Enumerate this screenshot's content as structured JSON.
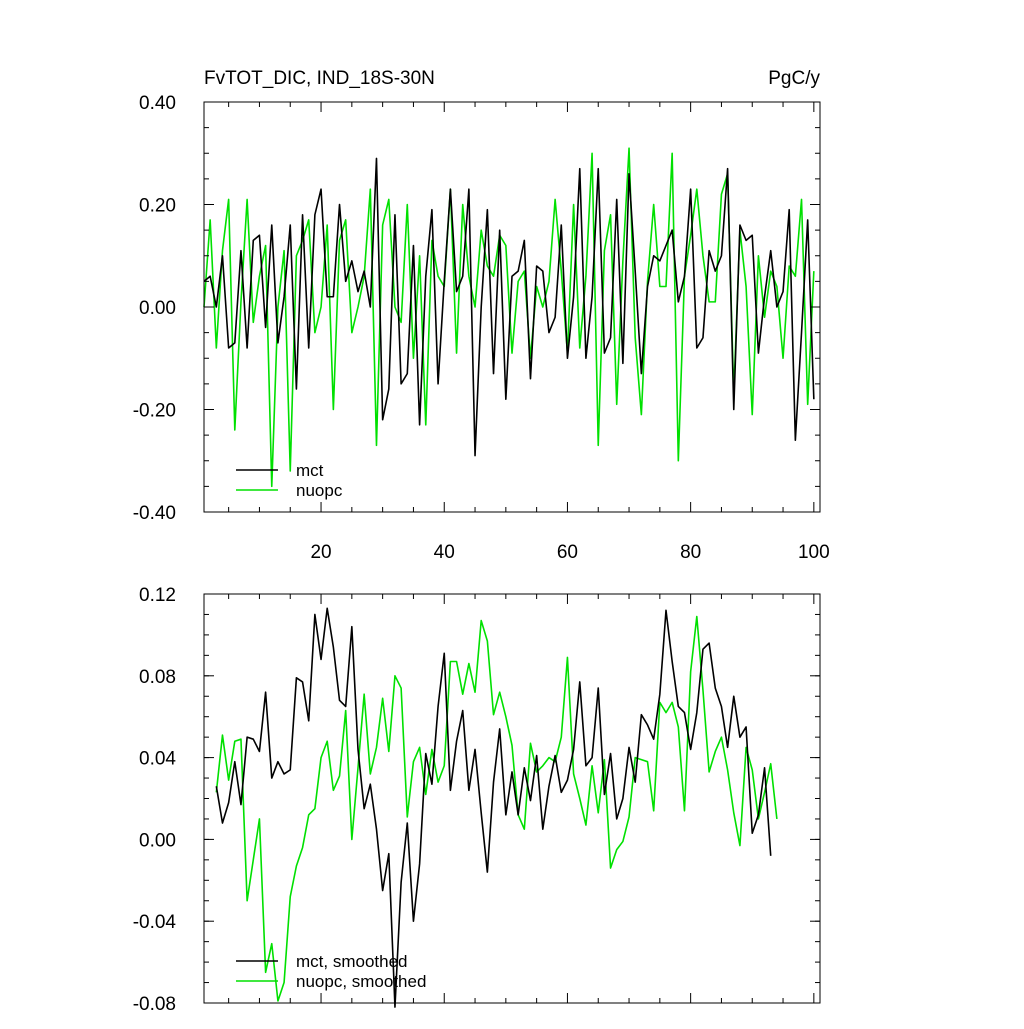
{
  "chart_data": [
    {
      "type": "line",
      "title": "FvTOT_DIC, IND_18S-30N",
      "units": "PgC/y",
      "xlim": [
        1,
        101
      ],
      "ylim": [
        -0.4,
        0.4
      ],
      "x_ticks": [
        20,
        40,
        60,
        80,
        100
      ],
      "x_tick_labels": [
        "20",
        "40",
        "60",
        "80",
        "100"
      ],
      "y_ticks": [
        -0.4,
        -0.2,
        0.0,
        0.2,
        0.4
      ],
      "y_tick_labels": [
        "-0.40",
        "-0.20",
        "0.00",
        "0.20",
        "0.40"
      ],
      "legend": {
        "placement": "bottom-left"
      },
      "grid": false,
      "series": [
        {
          "name": "mct",
          "color": "#000000",
          "x_start": 1,
          "values": [
            0.05,
            0.06,
            0.0,
            0.1,
            -0.08,
            -0.07,
            0.11,
            -0.08,
            0.13,
            0.14,
            -0.04,
            0.16,
            -0.07,
            0.02,
            0.16,
            -0.16,
            0.18,
            -0.08,
            0.18,
            0.23,
            0.02,
            0.02,
            0.2,
            0.05,
            0.09,
            0.03,
            0.07,
            0.0,
            0.29,
            -0.22,
            -0.16,
            0.18,
            -0.15,
            -0.13,
            0.12,
            -0.23,
            0.06,
            0.19,
            -0.15,
            0.05,
            0.23,
            0.03,
            0.06,
            0.23,
            -0.29,
            0.0,
            0.19,
            -0.13,
            0.15,
            -0.18,
            0.06,
            0.07,
            0.13,
            -0.14,
            0.08,
            0.07,
            -0.05,
            -0.02,
            0.16,
            -0.1,
            0.02,
            0.27,
            -0.1,
            0.02,
            0.27,
            -0.09,
            -0.06,
            0.21,
            -0.11,
            0.26,
            0.07,
            -0.13,
            0.04,
            0.1,
            0.09,
            0.12,
            0.15,
            0.01,
            0.06,
            0.23,
            -0.08,
            -0.06,
            0.11,
            0.07,
            0.1,
            0.27,
            -0.2,
            0.16,
            0.13,
            0.14,
            -0.09,
            0.02,
            0.11,
            0.0,
            0.03,
            0.19,
            -0.26,
            -0.05,
            0.17,
            -0.18
          ]
        },
        {
          "name": "nuopc",
          "color": "#00e000",
          "x_start": 1,
          "values": [
            0.0,
            0.17,
            -0.08,
            0.11,
            0.21,
            -0.24,
            0.01,
            0.21,
            -0.03,
            0.06,
            0.12,
            -0.35,
            0.0,
            0.11,
            -0.32,
            0.1,
            0.13,
            0.17,
            -0.05,
            0.0,
            0.16,
            -0.2,
            0.13,
            0.17,
            -0.05,
            0.0,
            0.06,
            0.23,
            -0.27,
            0.16,
            0.21,
            0.0,
            -0.03,
            0.2,
            -0.1,
            0.1,
            -0.23,
            0.13,
            0.06,
            0.04,
            0.23,
            -0.09,
            0.2,
            0.06,
            0.0,
            0.15,
            0.08,
            0.06,
            0.14,
            0.12,
            -0.09,
            0.05,
            0.07,
            -0.1,
            0.04,
            0.0,
            0.05,
            0.21,
            0.07,
            -0.09,
            0.2,
            -0.08,
            0.06,
            0.3,
            -0.27,
            0.11,
            0.18,
            -0.19,
            0.09,
            0.31,
            -0.06,
            -0.21,
            0.05,
            0.2,
            0.04,
            0.04,
            0.3,
            -0.3,
            0.06,
            0.14,
            0.23,
            0.1,
            0.01,
            0.01,
            0.22,
            0.26,
            -0.17,
            0.15,
            0.04,
            -0.21,
            0.1,
            -0.02,
            0.07,
            0.04,
            -0.1,
            0.08,
            0.06,
            0.21,
            -0.19,
            0.07
          ]
        }
      ]
    },
    {
      "type": "line",
      "title": "",
      "xlim": [
        1,
        101
      ],
      "ylim": [
        -0.08,
        0.12
      ],
      "x_ticks": [
        20,
        40,
        60,
        80,
        100
      ],
      "x_tick_labels": [],
      "y_ticks": [
        -0.08,
        -0.04,
        0.0,
        0.04,
        0.08,
        0.12
      ],
      "y_tick_labels": [
        "-0.08",
        "-0.04",
        "0.00",
        "0.04",
        "0.08",
        "0.12"
      ],
      "legend": {
        "placement": "bottom-left"
      },
      "grid": false,
      "series": [
        {
          "name": "mct, smoothed",
          "color": "#000000",
          "x_start": 3,
          "values": [
            0.026,
            0.008,
            0.018,
            0.038,
            0.017,
            0.05,
            0.049,
            0.043,
            0.072,
            0.03,
            0.038,
            0.032,
            0.034,
            0.079,
            0.077,
            0.058,
            0.11,
            0.088,
            0.113,
            0.094,
            0.068,
            0.065,
            0.104,
            0.044,
            0.015,
            0.027,
            0.005,
            -0.025,
            -0.007,
            -0.082,
            -0.021,
            0.008,
            -0.04,
            -0.012,
            0.042,
            0.027,
            0.065,
            0.091,
            0.024,
            0.048,
            0.063,
            0.024,
            0.044,
            0.013,
            -0.016,
            0.028,
            0.054,
            0.012,
            0.033,
            0.012,
            0.035,
            0.019,
            0.041,
            0.005,
            0.026,
            0.041,
            0.023,
            0.029,
            0.044,
            0.077,
            0.036,
            0.04,
            0.074,
            0.022,
            0.042,
            0.01,
            0.02,
            0.045,
            0.028,
            0.061,
            0.056,
            0.049,
            0.071,
            0.112,
            0.087,
            0.065,
            0.062,
            0.044,
            0.062,
            0.093,
            0.096,
            0.074,
            0.065,
            0.045,
            0.07,
            0.05,
            0.055,
            0.003,
            0.012,
            0.035,
            -0.008
          ]
        },
        {
          "name": "nuopc, smoothed",
          "color": "#00e000",
          "x_start": 3,
          "values": [
            0.023,
            0.051,
            0.029,
            0.048,
            0.049,
            -0.03,
            -0.01,
            0.01,
            -0.065,
            -0.051,
            -0.079,
            -0.07,
            -0.028,
            -0.013,
            -0.004,
            0.012,
            0.015,
            0.04,
            0.048,
            0.024,
            0.031,
            0.063,
            0.0,
            0.035,
            0.071,
            0.032,
            0.045,
            0.069,
            0.043,
            0.08,
            0.074,
            0.011,
            0.038,
            0.045,
            0.022,
            0.044,
            0.028,
            0.036,
            0.087,
            0.087,
            0.071,
            0.086,
            0.072,
            0.107,
            0.097,
            0.061,
            0.072,
            0.06,
            0.046,
            0.012,
            0.005,
            0.047,
            0.033,
            0.036,
            0.04,
            0.038,
            0.05,
            0.089,
            0.032,
            0.02,
            0.007,
            0.036,
            0.013,
            0.039,
            -0.014,
            -0.005,
            -0.001,
            0.011,
            0.04,
            0.039,
            0.038,
            0.014,
            0.067,
            0.062,
            0.067,
            0.055,
            0.014,
            0.082,
            0.109,
            0.073,
            0.033,
            0.043,
            0.05,
            0.034,
            0.013,
            -0.003,
            0.045,
            0.034,
            0.01,
            0.023,
            0.037,
            0.01
          ]
        }
      ]
    }
  ]
}
